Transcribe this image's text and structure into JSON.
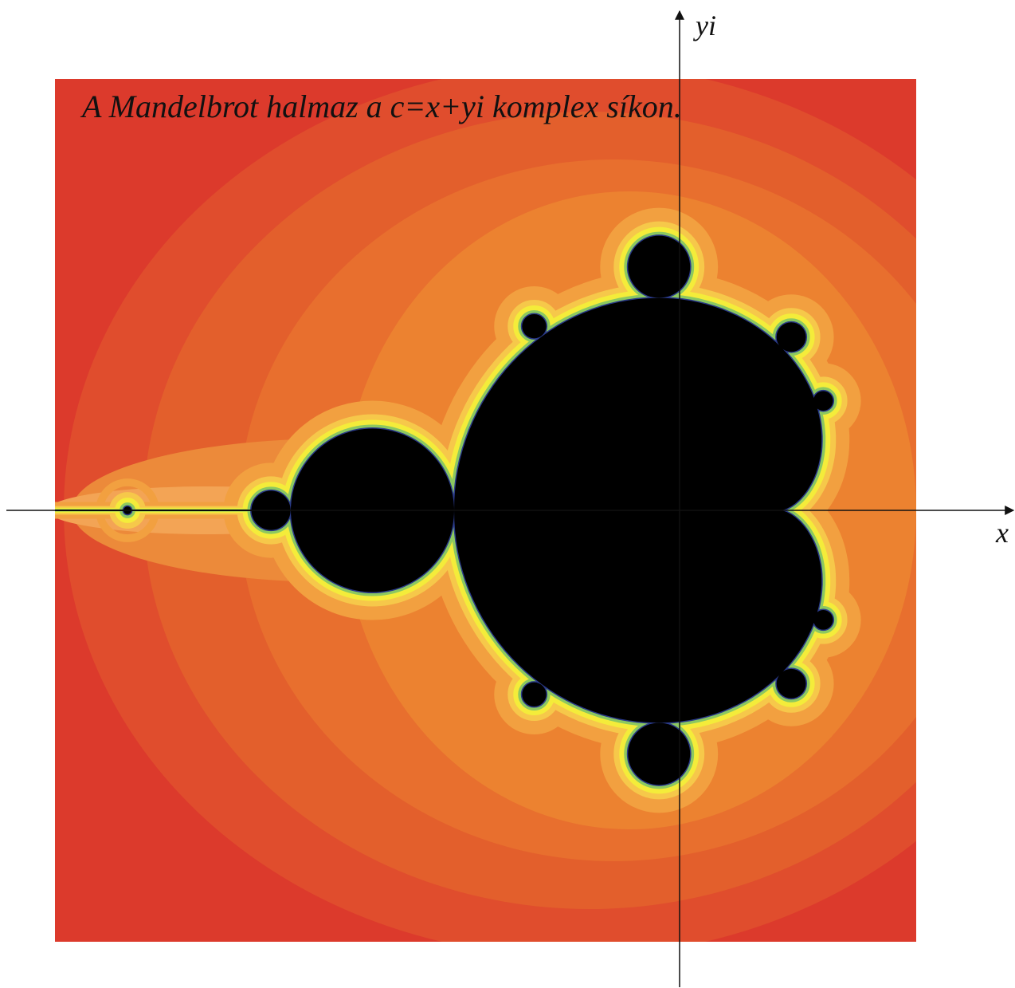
{
  "title": "A Mandelbrot halmaz a c=x+yi komplex síkon.",
  "axes": {
    "x_label": "x",
    "y_label": "yi"
  }
}
